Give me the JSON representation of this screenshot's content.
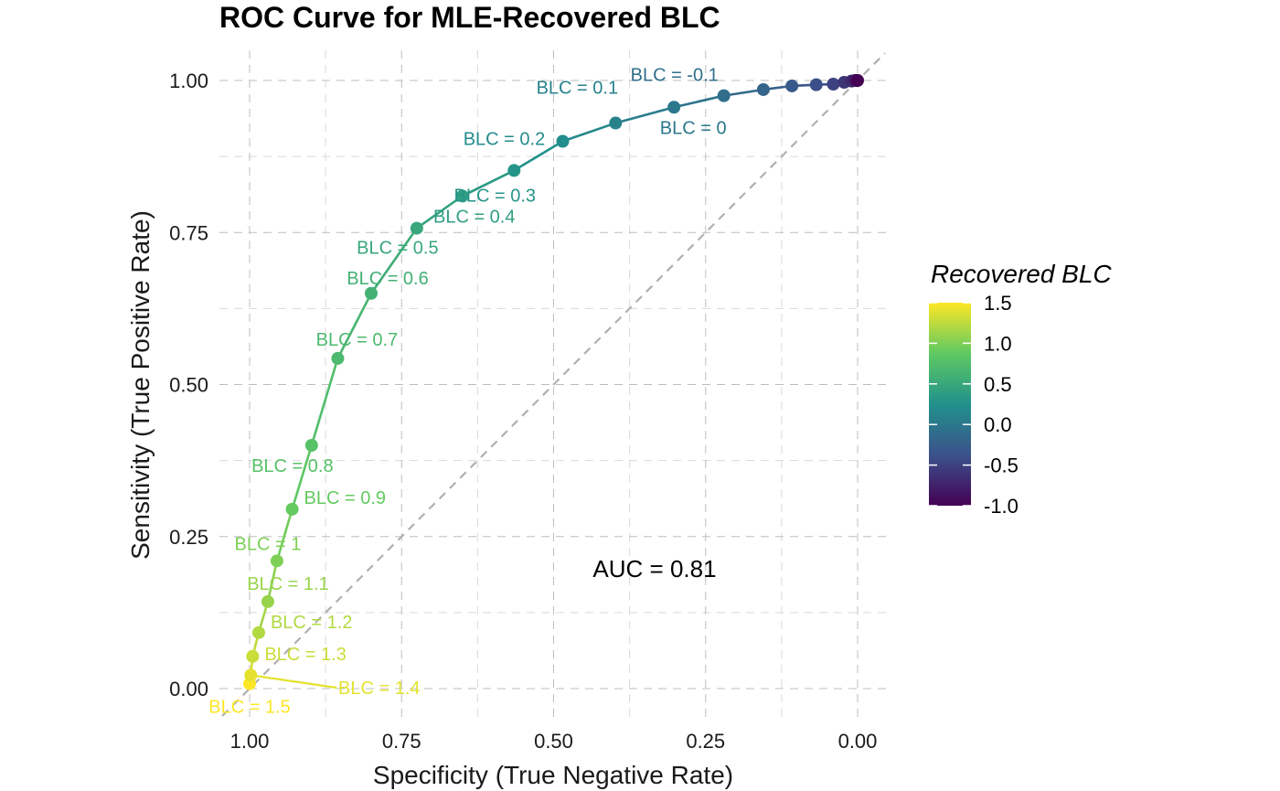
{
  "chart_data": {
    "type": "line",
    "title": "ROC Curve for MLE-Recovered BLC",
    "xlabel": "Specificity (True Negative Rate)",
    "ylabel": "Sensitivity (True Positive Rate)",
    "x_reversed": true,
    "xlim": [
      -0.05,
      1.05
    ],
    "ylim": [
      -0.05,
      1.05
    ],
    "x_ticks": [
      1.0,
      0.75,
      0.5,
      0.25,
      0.0
    ],
    "x_tick_labels": [
      "1.00",
      "0.75",
      "0.50",
      "0.25",
      "0.00"
    ],
    "y_ticks": [
      0.0,
      0.25,
      0.5,
      0.75,
      1.0
    ],
    "y_tick_labels": [
      "0.00",
      "0.25",
      "0.50",
      "0.75",
      "1.00"
    ],
    "grid": true,
    "reference_line": "diagonal",
    "annotation": "AUC =  0.81",
    "color_legend": {
      "title": "Recovered BLC",
      "position": "right",
      "palette": [
        "#440154",
        "#3b528b",
        "#21918c",
        "#5ec962",
        "#fde725"
      ],
      "range": [
        -1.0,
        1.5
      ],
      "ticks": [
        -1.0,
        -0.5,
        0.0,
        0.5,
        1.0,
        1.5
      ],
      "tick_labels": [
        "-1.0",
        "-0.5",
        "0.0",
        "0.5",
        "1.0",
        "1.5"
      ]
    },
    "points": [
      {
        "blc": 1.5,
        "specificity": 1.0,
        "sensitivity": 0.008,
        "label": "BLC = 1.5"
      },
      {
        "blc": 1.4,
        "specificity": 0.998,
        "sensitivity": 0.022,
        "label": "BLC = 1.4"
      },
      {
        "blc": 1.3,
        "specificity": 0.995,
        "sensitivity": 0.053,
        "label": "BLC = 1.3"
      },
      {
        "blc": 1.2,
        "specificity": 0.985,
        "sensitivity": 0.092,
        "label": "BLC = 1.2"
      },
      {
        "blc": 1.1,
        "specificity": 0.97,
        "sensitivity": 0.143,
        "label": "BLC = 1.1"
      },
      {
        "blc": 1.0,
        "specificity": 0.955,
        "sensitivity": 0.21,
        "label": "BLC = 1"
      },
      {
        "blc": 0.9,
        "specificity": 0.93,
        "sensitivity": 0.295,
        "label": "BLC = 0.9"
      },
      {
        "blc": 0.8,
        "specificity": 0.898,
        "sensitivity": 0.4,
        "label": "BLC = 0.8"
      },
      {
        "blc": 0.7,
        "specificity": 0.855,
        "sensitivity": 0.543,
        "label": "BLC = 0.7"
      },
      {
        "blc": 0.6,
        "specificity": 0.8,
        "sensitivity": 0.65,
        "label": "BLC = 0.6"
      },
      {
        "blc": 0.5,
        "specificity": 0.725,
        "sensitivity": 0.757,
        "label": "BLC = 0.5"
      },
      {
        "blc": 0.4,
        "specificity": 0.65,
        "sensitivity": 0.81,
        "label": "BLC = 0.4"
      },
      {
        "blc": 0.3,
        "specificity": 0.565,
        "sensitivity": 0.852,
        "label": "BLC = 0.3"
      },
      {
        "blc": 0.2,
        "specificity": 0.485,
        "sensitivity": 0.9,
        "label": "BLC = 0.2"
      },
      {
        "blc": 0.1,
        "specificity": 0.398,
        "sensitivity": 0.93,
        "label": "BLC = 0.1"
      },
      {
        "blc": 0.0,
        "specificity": 0.302,
        "sensitivity": 0.956,
        "label": "BLC = 0"
      },
      {
        "blc": -0.1,
        "specificity": 0.22,
        "sensitivity": 0.975,
        "label": "BLC = -0.1"
      },
      {
        "blc": -0.2,
        "specificity": 0.155,
        "sensitivity": 0.985,
        "label": ""
      },
      {
        "blc": -0.3,
        "specificity": 0.108,
        "sensitivity": 0.991,
        "label": ""
      },
      {
        "blc": -0.4,
        "specificity": 0.068,
        "sensitivity": 0.993,
        "label": ""
      },
      {
        "blc": -0.5,
        "specificity": 0.04,
        "sensitivity": 0.994,
        "label": ""
      },
      {
        "blc": -0.6,
        "specificity": 0.022,
        "sensitivity": 0.997,
        "label": ""
      },
      {
        "blc": -0.7,
        "specificity": 0.01,
        "sensitivity": 0.999,
        "label": ""
      },
      {
        "blc": -0.8,
        "specificity": 0.004,
        "sensitivity": 1.0,
        "label": ""
      },
      {
        "blc": -0.9,
        "specificity": 0.001,
        "sensitivity": 1.0,
        "label": ""
      },
      {
        "blc": -1.0,
        "specificity": 0.0,
        "sensitivity": 1.0,
        "label": ""
      }
    ]
  }
}
